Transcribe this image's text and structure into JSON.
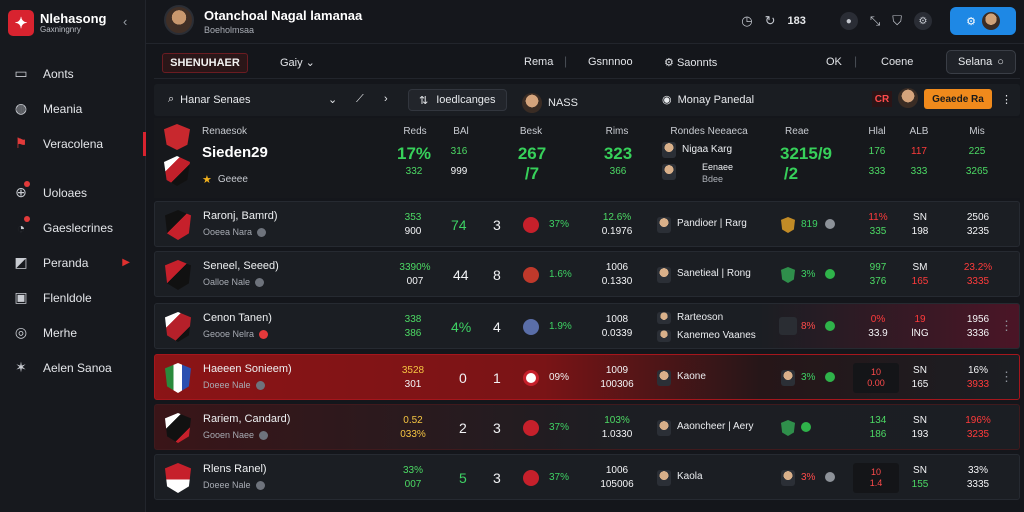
{
  "sidebar": {
    "logo_title": "Nlehasong",
    "logo_sub": "Gaxningnry",
    "items": [
      {
        "label": "Aonts",
        "icon": "monitor-icon"
      },
      {
        "label": "Meania",
        "icon": "globe-icon"
      },
      {
        "label": "Veracolena",
        "icon": "flag-icon"
      },
      {
        "label": "Uoloaes",
        "icon": "search-icon"
      },
      {
        "label": "Gaeslecrines",
        "icon": "gauge-icon"
      },
      {
        "label": "Peranda",
        "icon": "chart-icon"
      },
      {
        "label": "Flenldole",
        "icon": "table-icon"
      },
      {
        "label": "Merhe",
        "icon": "globe-icon"
      },
      {
        "label": "Aelen Sanoa",
        "icon": "star-icon"
      }
    ]
  },
  "topbar": {
    "title": "Otanchoal Nagal lamanaa",
    "subtitle": "Boeholmsaa",
    "count": "183"
  },
  "toolbar": {
    "tab_label": "SHENUHAER",
    "sort_label": "Gaiy",
    "items": [
      "Rema",
      "Gsnnnoo",
      "Saonnts",
      "OK",
      "Coene"
    ],
    "button_label": "Selana"
  },
  "filterbar": {
    "search_label": "Hanar Senaes",
    "chip_label": "Ioedlcanges",
    "match_label": "NASS",
    "person_label": "Monay Panedal",
    "red_mini": "CR",
    "orange_label": "Geaede Ra"
  },
  "header": {
    "line1": "Renaesok",
    "team": "Sieden29",
    "line3": "Geeee",
    "cols": [
      "Reds",
      "BAl",
      "Besk",
      "Rims",
      "Rondes Neeaeca",
      "Reae",
      "Hlal",
      "ALB",
      "Mis"
    ],
    "c1_big": "17%",
    "c1_small": "332",
    "c2": "316",
    "c2b": "999",
    "c3_big": "267",
    "c3_sub": "/7",
    "c4_big": "323",
    "c4_small": "366",
    "p1": "Nigaa Karg",
    "p2": "Eenaee",
    "p2b": "Bdee",
    "c6_big": "3215/9",
    "c6_sub": "/2",
    "c7": "176",
    "c7b": "333",
    "c8": "117",
    "c8b": "333",
    "c9": "225",
    "c9b": "3265"
  },
  "rows": [
    {
      "name": "Raronj, Bamrd)",
      "sub": "Ooeea Nara",
      "a": "353",
      "ab": "900",
      "n1": "74",
      "n2": "3",
      "pct": "37%",
      "p1": "12.6%",
      "p2": "0.1976",
      "person": "Pandioer | Rarg",
      "ps": "819",
      "x1": "11%",
      "x1b": "335",
      "x2": "SN",
      "x2b": "198",
      "x3": "2506",
      "x3b": "3235"
    },
    {
      "name": "Seneel, Seeed)",
      "sub": "Oalloe Nale",
      "a": "3390%",
      "ab": "007",
      "n1": "44",
      "n2": "8",
      "pct": "1.6%",
      "p1": "1006",
      "p2": "0.1330",
      "person": "Sanetieal | Rong",
      "ps": "3%",
      "x1": "997",
      "x1b": "376",
      "x2": "SM",
      "x2b": "165",
      "x3": "23.2%",
      "x3b": "3335"
    },
    {
      "name": "Cenon Tanen)",
      "sub": "Geooe Nelra",
      "a": "338",
      "ab": "386",
      "n1": "4%",
      "n2": "4",
      "pct": "1.9%",
      "p1": "1008",
      "p2": "0.0339",
      "person": "Rarteoson",
      "person2": "Kanemeo Vaanes",
      "ps": "8%",
      "x1": "0%",
      "x1b": "33.9",
      "x2": "19",
      "x2b": "lNG",
      "x3": "1956",
      "x3b": "3336"
    },
    {
      "name": "Haeeen Sonieem)",
      "sub": "Doeee Nale",
      "a": "3528",
      "ab": "301",
      "n1": "0",
      "n2": "1",
      "pct": "09%",
      "p1": "1009",
      "p2": "100306",
      "person": "Kaone",
      "ps": "3%",
      "x1": "10",
      "x1b": "0.00",
      "x2": "SN",
      "x2b": "165",
      "x3": "16%",
      "x3b": "3933"
    },
    {
      "name": "Rariem, Candard)",
      "sub": "Gooen Naee",
      "a": "0.52",
      "ab": "033%",
      "n1": "2",
      "n2": "3",
      "pct": "37%",
      "p1": "103%",
      "p2": "1.0330",
      "person": "Aaoncheer | Aery",
      "ps": "",
      "x1": "134",
      "x1b": "186",
      "x2": "SN",
      "x2b": "193",
      "x3": "196%",
      "x3b": "3235"
    },
    {
      "name": "Rlens Ranel)",
      "sub": "Doeee Nale",
      "a": "33%",
      "ab": "007",
      "n1": "5",
      "n2": "3",
      "pct": "37%",
      "p1": "1006",
      "p2": "105006",
      "person": "Kaola",
      "ps": "3%",
      "x1": "10",
      "x1b": "1.4",
      "x2": "SN",
      "x2b": "155",
      "x3": "33%",
      "x3b": "3335"
    }
  ],
  "colors": {
    "accent": "#d8232f",
    "green": "#37d05a",
    "red": "#ff3b3b",
    "blue": "#1e88e5",
    "orange": "#f08a1c"
  }
}
